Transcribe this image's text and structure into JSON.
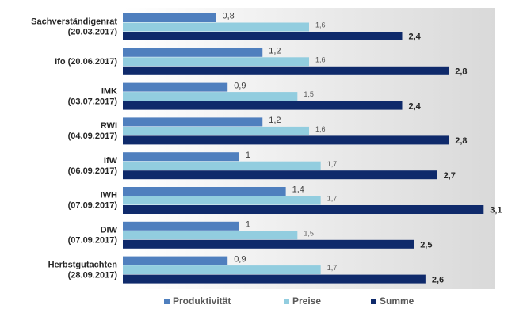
{
  "chart_data": {
    "type": "bar",
    "orientation": "horizontal",
    "categories": [
      [
        "Sachverständigenrat",
        "(20.03.2017)"
      ],
      [
        "Ifo (20.06.2017)"
      ],
      [
        "IMK",
        "(03.07.2017)"
      ],
      [
        "RWI",
        "(04.09.2017)"
      ],
      [
        "IfW",
        "(06.09.2017)"
      ],
      [
        "IWH",
        "(07.09.2017)"
      ],
      [
        "DIW",
        "(07.09.2017)"
      ],
      [
        "Herbstgutachten",
        "(28.09.2017)"
      ]
    ],
    "series": [
      {
        "name": "Produktivität",
        "color": "#4f7fbe",
        "values": [
          0.8,
          1.2,
          0.9,
          1.2,
          1,
          1.4,
          1,
          0.9
        ],
        "value_labels": [
          "0,8",
          "1,2",
          "0,9",
          "1,2",
          "1",
          "1,4",
          "1",
          "0,9"
        ]
      },
      {
        "name": "Preise",
        "color": "#92cddf",
        "values": [
          1.6,
          1.6,
          1.5,
          1.6,
          1.7,
          1.7,
          1.5,
          1.7
        ],
        "value_labels": [
          "1,6",
          "1,6",
          "1,5",
          "1,6",
          "1,7",
          "1,7",
          "1,5",
          "1,7"
        ]
      },
      {
        "name": "Summe",
        "color": "#0f2a6b",
        "values": [
          2.4,
          2.8,
          2.4,
          2.8,
          2.7,
          3.1,
          2.5,
          2.6
        ],
        "value_labels": [
          "2,4",
          "2,8",
          "2,4",
          "2,8",
          "2,7",
          "3,1",
          "2,5",
          "2,6"
        ]
      }
    ],
    "xlim": [
      0,
      3.2
    ],
    "legend": "bottom"
  }
}
